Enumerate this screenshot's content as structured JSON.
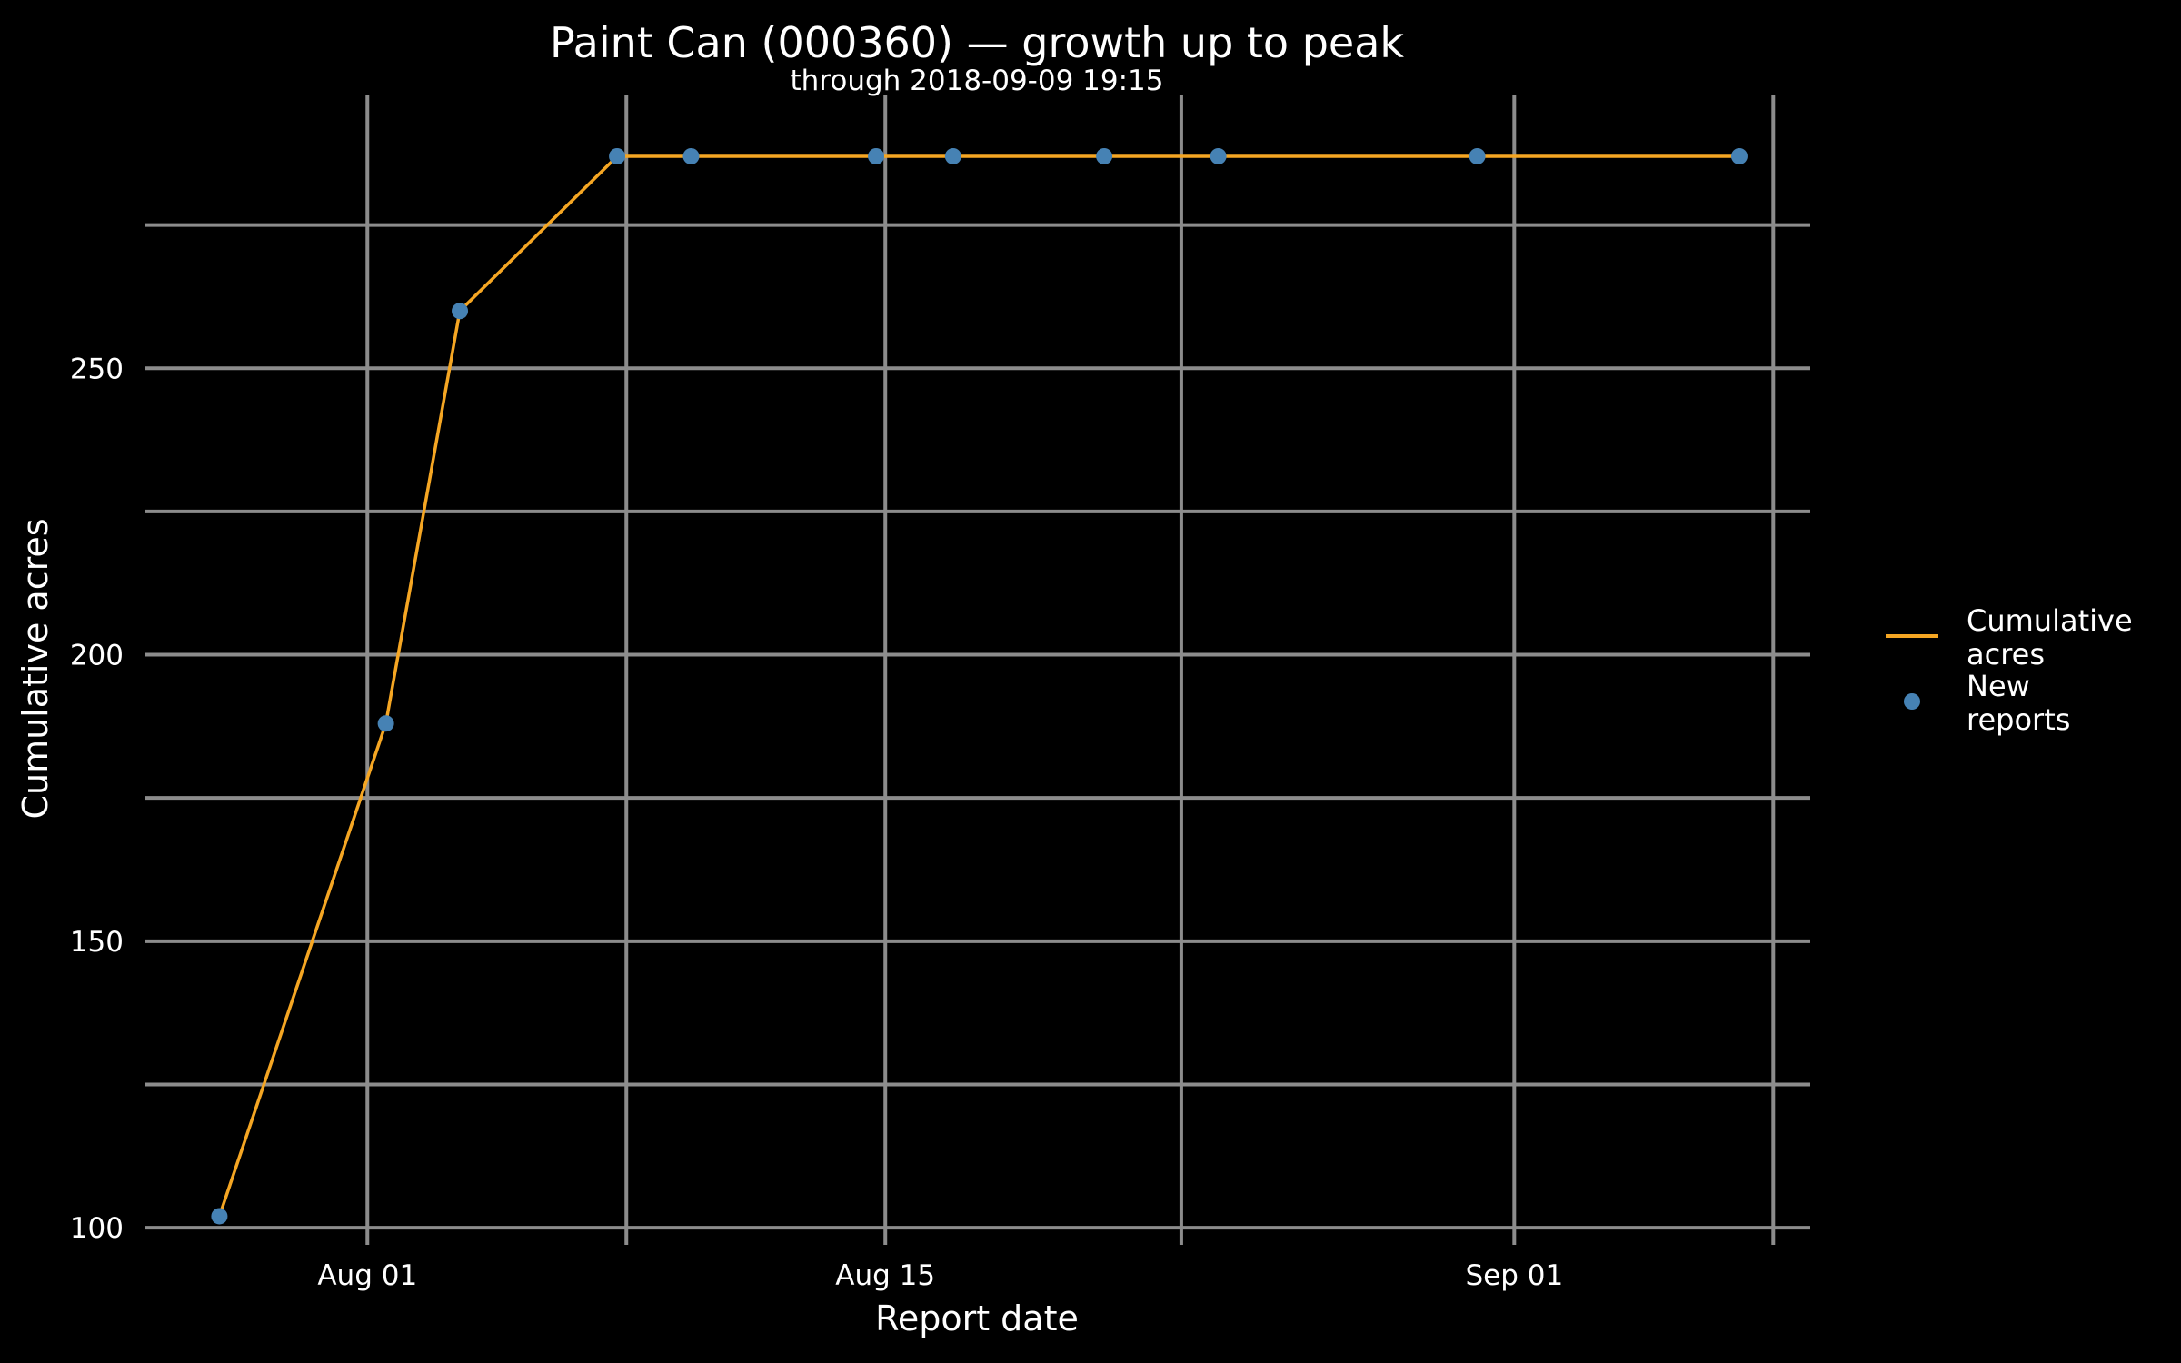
{
  "chart_data": {
    "type": "line",
    "title": "Paint Can (000360) — growth up to peak",
    "subtitle": "through 2018-09-09 19:15",
    "xlabel": "Report date",
    "ylabel": "Cumulative acres",
    "xlim": [
      "2018-07-26",
      "2018-09-09"
    ],
    "ylim": [
      97,
      300
    ],
    "x_ticks": [
      {
        "date": "2018-08-01",
        "label": "Aug 01"
      },
      {
        "date": "2018-08-15",
        "label": "Aug 15"
      },
      {
        "date": "2018-09-01",
        "label": "Sep 01"
      }
    ],
    "x_minor_grid": [
      "2018-08-08",
      "2018-08-23",
      "2018-09-08"
    ],
    "y_ticks": [
      100,
      150,
      200,
      250
    ],
    "y_minor_grid": [
      125,
      175,
      225,
      275
    ],
    "grid": true,
    "legend_position": "right",
    "series": [
      {
        "name": "Cumulative\nacres",
        "kind": "line",
        "color": "#F5A623",
        "points": [
          {
            "x": "2018-07-28",
            "y": 102
          },
          {
            "x": "2018-08-01 12:00",
            "y": 188
          },
          {
            "x": "2018-08-03 12:00",
            "y": 260
          },
          {
            "x": "2018-08-07 18:00",
            "y": 287
          },
          {
            "x": "2018-08-09 18:00",
            "y": 287
          },
          {
            "x": "2018-08-14 18:00",
            "y": 287
          },
          {
            "x": "2018-08-16 20:00",
            "y": 287
          },
          {
            "x": "2018-08-20 22:00",
            "y": 287
          },
          {
            "x": "2018-08-24",
            "y": 287
          },
          {
            "x": "2018-08-31",
            "y": 287
          },
          {
            "x": "2018-09-07 02:00",
            "y": 287
          }
        ]
      },
      {
        "name": "New\nreports",
        "kind": "points",
        "color": "#4682B4",
        "points": [
          {
            "x": "2018-07-28",
            "y": 102
          },
          {
            "x": "2018-08-01 12:00",
            "y": 188
          },
          {
            "x": "2018-08-03 12:00",
            "y": 260
          },
          {
            "x": "2018-08-07 18:00",
            "y": 287
          },
          {
            "x": "2018-08-09 18:00",
            "y": 287
          },
          {
            "x": "2018-08-14 18:00",
            "y": 287
          },
          {
            "x": "2018-08-16 20:00",
            "y": 287
          },
          {
            "x": "2018-08-20 22:00",
            "y": 287
          },
          {
            "x": "2018-08-24",
            "y": 287
          },
          {
            "x": "2018-08-31",
            "y": 287
          },
          {
            "x": "2018-09-07 02:00",
            "y": 287
          }
        ]
      }
    ],
    "grid_color": "#8C8C8C"
  }
}
